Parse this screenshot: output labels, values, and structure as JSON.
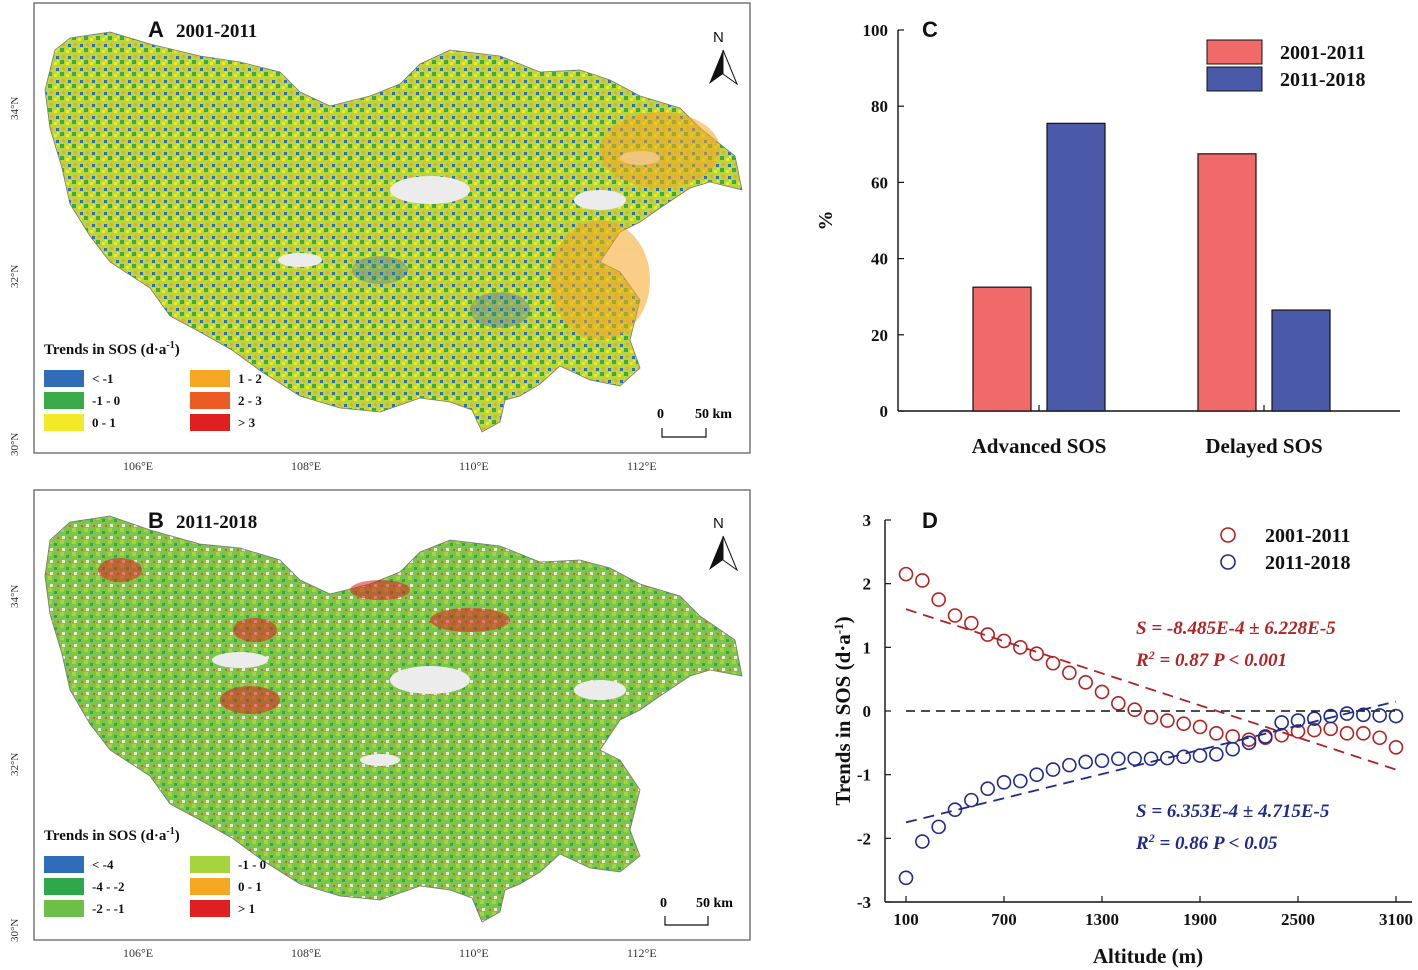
{
  "map_a": {
    "panel": "A",
    "period": "2001-2011",
    "north": "N",
    "scale_zero": "0",
    "scale_label": "50 km",
    "legend_title": "Trends in SOS (d·a",
    "legend_sup": "-1",
    "legend_close": ")",
    "lat_ticks": [
      "34°N",
      "32°N",
      "30°N"
    ],
    "lon_ticks": [
      "106°E",
      "108°E",
      "110°E",
      "112°E"
    ],
    "classes": [
      {
        "label": "< -1",
        "color": "#2f6db8"
      },
      {
        "label": "-1 - 0",
        "color": "#3aaa4a"
      },
      {
        "label": "0 - 1",
        "color": "#f2ea28"
      },
      {
        "label": "1 - 2",
        "color": "#f5a623"
      },
      {
        "label": "2 - 3",
        "color": "#ee5a24"
      },
      {
        "label": "> 3",
        "color": "#e02020"
      }
    ]
  },
  "map_b": {
    "panel": "B",
    "period": "2011-2018",
    "north": "N",
    "scale_zero": "0",
    "scale_label": "50 km",
    "legend_title": "Trends in SOS (d·a",
    "legend_sup": "-1",
    "legend_close": ")",
    "lat_ticks": [
      "34°N",
      "32°N",
      "30°N"
    ],
    "lon_ticks": [
      "106°E",
      "108°E",
      "110°E",
      "112°E"
    ],
    "classes": [
      {
        "label": "< -4",
        "color": "#2f6db8"
      },
      {
        "label": "-4 - -2",
        "color": "#2ea84a"
      },
      {
        "label": "-2 - -1",
        "color": "#6cc04a"
      },
      {
        "label": "-1 - 0",
        "color": "#a6d43c"
      },
      {
        "label": "0 - 1",
        "color": "#f5a623"
      },
      {
        "label": "> 1",
        "color": "#e02020"
      }
    ]
  },
  "chart_data": [
    {
      "panel": "C",
      "type": "bar",
      "categories": [
        "Advanced SOS",
        "Delayed SOS"
      ],
      "series": [
        {
          "name": "2001-2011",
          "values": [
            32.5,
            67.5
          ],
          "color": "#f06a6a"
        },
        {
          "name": "2011-2018",
          "values": [
            75.5,
            26.5
          ],
          "color": "#4a5aa8"
        }
      ],
      "ylabel": "%",
      "ylim": [
        0,
        100
      ],
      "yticks": [
        "0",
        "20",
        "40",
        "60",
        "80",
        "100"
      ],
      "legend": "top-right"
    },
    {
      "panel": "D",
      "type": "scatter",
      "xlabel": "Altitude (m)",
      "ylabel_main": "Trends in SOS (d·a",
      "ylabel_sup": "-1",
      "ylabel_close": ")",
      "xlim": [
        100,
        3100
      ],
      "ylim": [
        -3,
        3
      ],
      "xticks": [
        "100",
        "700",
        "1300",
        "1900",
        "2500",
        "3100"
      ],
      "yticks": [
        "-3",
        "-2",
        "-1",
        "0",
        "1",
        "2",
        "3"
      ],
      "x": [
        100,
        200,
        300,
        400,
        500,
        600,
        700,
        800,
        900,
        1000,
        1100,
        1200,
        1300,
        1400,
        1500,
        1600,
        1700,
        1800,
        1900,
        2000,
        2100,
        2200,
        2300,
        2400,
        2500,
        2600,
        2700,
        2800,
        2900,
        3000,
        3100
      ],
      "series": [
        {
          "name": "2001-2011",
          "color": "#b22222",
          "values": [
            2.15,
            2.05,
            1.75,
            1.5,
            1.38,
            1.2,
            1.1,
            1.0,
            0.9,
            0.75,
            0.6,
            0.45,
            0.3,
            0.12,
            0.02,
            -0.1,
            -0.15,
            -0.2,
            -0.25,
            -0.35,
            -0.4,
            -0.45,
            -0.42,
            -0.38,
            -0.32,
            -0.3,
            -0.28,
            -0.35,
            -0.35,
            -0.42,
            -0.57
          ],
          "fit": {
            "y_start": 1.6,
            "y_end": -0.92
          },
          "stat_s": "S = -8.485E-4 ± 6.228E-5",
          "stat_r_label": "R",
          "stat_r_sup": "2",
          "stat_r_rest": " = 0.87  P < 0.001"
        },
        {
          "name": "2011-2018",
          "color": "#1f2a8a",
          "values": [
            -2.62,
            -2.05,
            -1.82,
            -1.55,
            -1.4,
            -1.22,
            -1.12,
            -1.1,
            -1.0,
            -0.92,
            -0.85,
            -0.8,
            -0.78,
            -0.75,
            -0.75,
            -0.75,
            -0.74,
            -0.72,
            -0.7,
            -0.68,
            -0.6,
            -0.5,
            -0.4,
            -0.18,
            -0.15,
            -0.12,
            -0.08,
            -0.04,
            -0.06,
            -0.07,
            -0.08
          ],
          "fit": {
            "y_start": -1.75,
            "y_end": 0.15
          },
          "stat_s": "S = 6.353E-4 ± 4.715E-5",
          "stat_r_label": "R",
          "stat_r_sup": "2",
          "stat_r_rest": " = 0.86  P < 0.05"
        }
      ]
    }
  ]
}
